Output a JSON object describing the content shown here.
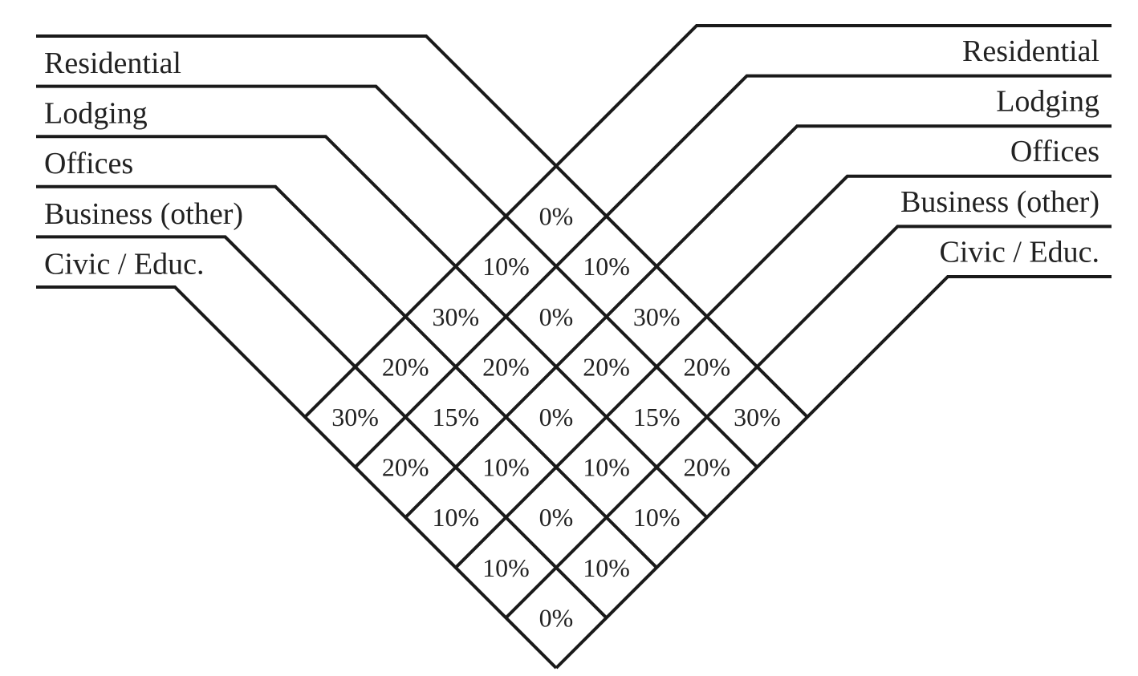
{
  "categories": [
    "Residential",
    "Lodging",
    "Offices",
    "Business (other)",
    "Civic / Educ."
  ],
  "matrix": [
    [
      "0%",
      "10%",
      "30%",
      "20%",
      "30%"
    ],
    [
      "10%",
      "0%",
      "20%",
      "15%",
      "20%"
    ],
    [
      "30%",
      "20%",
      "0%",
      "10%",
      "10%"
    ],
    [
      "20%",
      "15%",
      "10%",
      "0%",
      "10%"
    ],
    [
      "30%",
      "20%",
      "10%",
      "10%",
      "0%"
    ]
  ],
  "line_color": "#1a1a1a"
}
